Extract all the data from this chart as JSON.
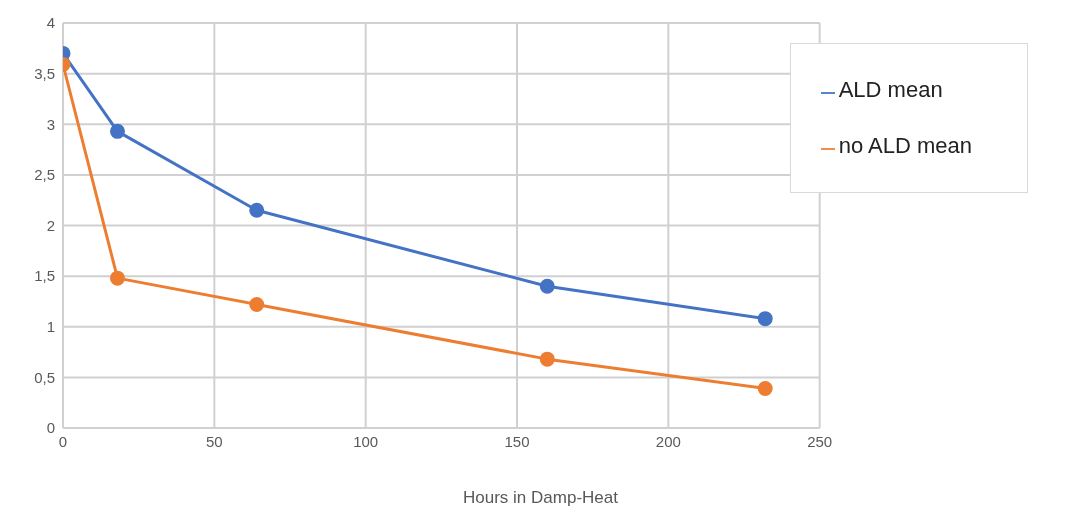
{
  "chart_data": {
    "type": "line",
    "xlabel": "Hours in Damp-Heat",
    "x": [
      0,
      18,
      64,
      160,
      232
    ],
    "series": [
      {
        "name": "ALD mean",
        "color": "#4472c4",
        "values": [
          3.7,
          2.93,
          2.15,
          1.4,
          1.08
        ]
      },
      {
        "name": "no ALD mean",
        "color": "#ed7d31",
        "values": [
          3.59,
          1.48,
          1.22,
          0.68,
          0.39
        ]
      }
    ],
    "xlim": [
      0,
      250
    ],
    "xticks": [
      0,
      50,
      100,
      150,
      200,
      250
    ],
    "ylim": [
      0,
      4
    ],
    "yticks": [
      0,
      {
        "value": 0.5,
        "label": "0,5"
      },
      1,
      {
        "value": 1.5,
        "label": "1,5"
      },
      2,
      {
        "value": 2.5,
        "label": "2,5"
      },
      3,
      {
        "value": 3.5,
        "label": "3,5"
      },
      4
    ],
    "grid": true,
    "legend": "top right",
    "marker": "circle",
    "line_style": "solid"
  }
}
